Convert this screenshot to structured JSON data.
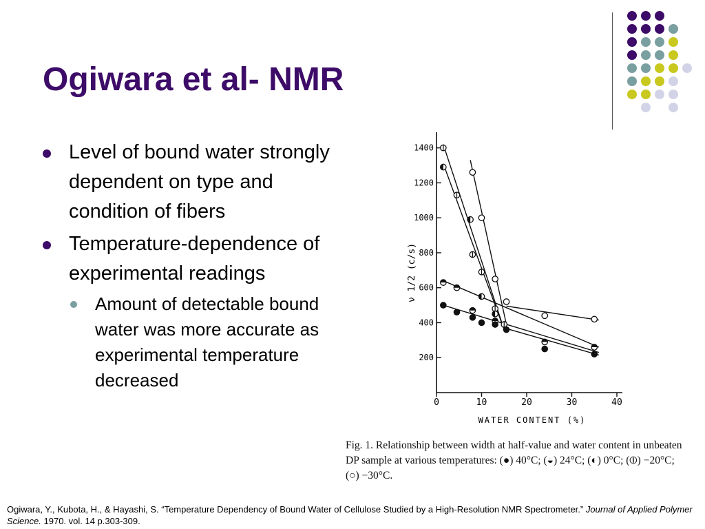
{
  "slide": {
    "title": "Ogiwara et al- NMR",
    "bullets": [
      {
        "text": "Level of bound water strongly dependent on type and condition of fibers"
      },
      {
        "text": "Temperature-dependence of experimental readings",
        "sub": [
          "Amount of detectable bound water was more accurate as experimental temperature decreased"
        ]
      }
    ],
    "colors": {
      "title": "#3d0c68",
      "bullet": "#3d0c68",
      "sub_bullet": "#7a9fa0"
    },
    "decoration": {
      "dot_colors": {
        "purple": "#3d0c68",
        "teal": "#7a9fa0",
        "yellow": "#c8c81e",
        "lavender": "#d3d3e8"
      }
    }
  },
  "chart_data": {
    "type": "scatter",
    "title": "",
    "xlabel": "WATER CONTENT (%)",
    "ylabel": "ν 1/2 (c/s)",
    "xlim": [
      0,
      40
    ],
    "ylim": [
      0,
      1450
    ],
    "xticks": [
      "0",
      "10",
      "20",
      "30",
      "40"
    ],
    "yticks": [
      "200",
      "400",
      "600",
      "800",
      "1000",
      "1200",
      "1400"
    ],
    "grid": false,
    "series": [
      {
        "marker": "open",
        "points": [
          [
            8,
            1260
          ],
          [
            10,
            1000
          ],
          [
            13,
            650
          ],
          [
            15.5,
            520
          ],
          [
            24,
            440
          ],
          [
            35,
            420
          ]
        ]
      },
      {
        "marker": "half-vertical",
        "points": [
          [
            1.5,
            1400
          ],
          [
            4.5,
            1130
          ],
          [
            8,
            790
          ],
          [
            10,
            690
          ],
          [
            13,
            480
          ],
          [
            15,
            390
          ]
        ]
      },
      {
        "marker": "half-left",
        "points": [
          [
            1.5,
            1290
          ],
          [
            7.5,
            990
          ],
          [
            10,
            550
          ],
          [
            13,
            450
          ]
        ]
      },
      {
        "marker": "half-horizontal",
        "points": [
          [
            1.5,
            630
          ],
          [
            4.5,
            600
          ],
          [
            8,
            470
          ],
          [
            13,
            410
          ],
          [
            24,
            290
          ],
          [
            35,
            260
          ]
        ]
      },
      {
        "marker": "filled",
        "points": [
          [
            1.5,
            500
          ],
          [
            4.5,
            460
          ],
          [
            8,
            430
          ],
          [
            10,
            400
          ],
          [
            13,
            390
          ],
          [
            15.5,
            360
          ],
          [
            24,
            250
          ],
          [
            35,
            220
          ]
        ]
      }
    ],
    "fit_lines": [
      [
        [
          7.5,
          1330
        ],
        [
          15.5,
          390
        ]
      ],
      [
        [
          1.5,
          1420
        ],
        [
          15,
          360
        ]
      ],
      [
        [
          1.5,
          1310
        ],
        [
          15,
          360
        ]
      ],
      [
        [
          15.5,
          495
        ],
        [
          36,
          415
        ]
      ],
      [
        [
          1.5,
          640
        ],
        [
          36,
          260
        ]
      ],
      [
        [
          1.5,
          500
        ],
        [
          36,
          230
        ]
      ],
      [
        [
          15,
          370
        ],
        [
          36,
          215
        ]
      ]
    ],
    "caption": "Fig. 1. Relationship between width at half-value and water content in unbeaten DP sample at various temperatures: (●) 40°C; (◒) 24°C; (◐) 0°C; (⦶) −20°C; (○) −30°C."
  },
  "citation": {
    "text": "Ogiwara, Y., Kubota, H., & Hayashi, S. “Temperature Dependency of Bound Water of Cellulose Studied by a High-Resolution NMR Spectrometer.”",
    "journal": "Journal of Applied Polymer Science.",
    "details": "1970. vol. 14 p.303-309."
  }
}
